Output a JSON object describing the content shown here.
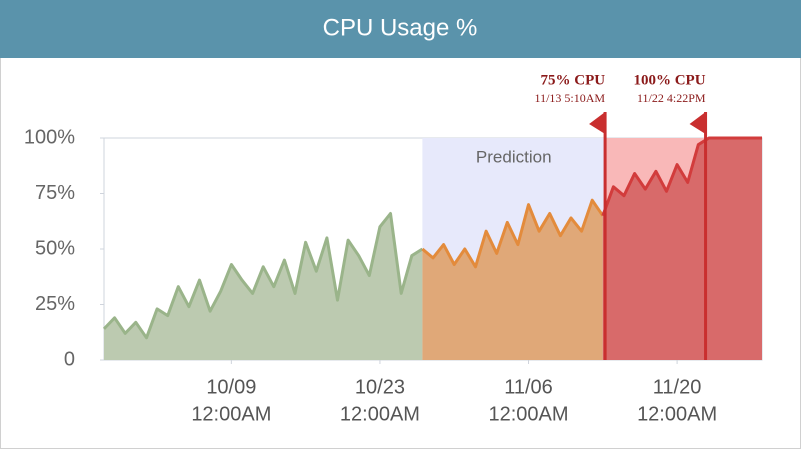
{
  "chart_data": {
    "type": "area",
    "title": "CPU Usage %",
    "x": [
      "09/27 12:00AM",
      "09/28 12:00AM",
      "09/29 12:00AM",
      "09/30 12:00AM",
      "10/01 12:00AM",
      "10/02 12:00AM",
      "10/03 12:00AM",
      "10/04 12:00AM",
      "10/05 12:00AM",
      "10/06 12:00AM",
      "10/07 12:00AM",
      "10/08 12:00AM",
      "10/09 12:00AM",
      "10/10 12:00AM",
      "10/11 12:00AM",
      "10/12 12:00AM",
      "10/13 12:00AM",
      "10/14 12:00AM",
      "10/15 12:00AM",
      "10/16 12:00AM",
      "10/17 12:00AM",
      "10/18 12:00AM",
      "10/19 12:00AM",
      "10/20 12:00AM",
      "10/21 12:00AM",
      "10/22 12:00AM",
      "10/23 12:00AM",
      "10/24 12:00AM",
      "10/25 12:00AM",
      "10/26 12:00AM",
      "10/27 12:00AM",
      "10/28 12:00AM",
      "10/29 12:00AM",
      "10/30 12:00AM",
      "10/31 12:00AM",
      "11/01 12:00AM",
      "11/02 12:00AM",
      "11/03 12:00AM",
      "11/04 12:00AM",
      "11/05 12:00AM",
      "11/06 12:00AM",
      "11/07 12:00AM",
      "11/08 12:00AM",
      "11/09 12:00AM",
      "11/10 12:00AM",
      "11/11 12:00AM",
      "11/12 12:00AM",
      "11/13 12:00AM",
      "11/14 12:00AM",
      "11/15 12:00AM",
      "11/16 12:00AM",
      "11/17 12:00AM",
      "11/18 12:00AM",
      "11/19 12:00AM",
      "11/20 12:00AM",
      "11/21 12:00AM",
      "11/22 12:00AM",
      "11/23 12:00AM",
      "11/24 12:00AM",
      "11/25 12:00AM",
      "11/26 12:00AM",
      "11/27 12:00AM",
      "11/28 12:00AM"
    ],
    "series": [
      {
        "color": "#9ab48a",
        "fill": "#bccab0",
        "values": [
          14,
          19,
          12,
          17,
          10,
          23,
          20,
          33,
          24,
          36,
          22,
          31,
          43,
          36,
          30,
          42,
          33,
          45,
          30,
          53,
          40,
          55,
          27,
          54,
          47,
          38,
          60,
          66,
          30,
          47,
          50,
          null,
          null,
          null,
          null,
          null,
          null,
          null,
          null,
          null,
          null,
          null,
          null,
          null,
          null,
          null,
          null,
          null,
          null,
          null,
          null,
          null,
          null,
          null,
          null,
          null,
          null,
          null,
          null,
          null,
          null,
          null,
          null
        ]
      },
      {
        "color": "#e38b3c",
        "fill": "#e0a878",
        "values": [
          null,
          null,
          null,
          null,
          null,
          null,
          null,
          null,
          null,
          null,
          null,
          null,
          null,
          null,
          null,
          null,
          null,
          null,
          null,
          null,
          null,
          null,
          null,
          null,
          null,
          null,
          null,
          null,
          null,
          null,
          50,
          46,
          52,
          43,
          50,
          42,
          58,
          48,
          62,
          52,
          70,
          58,
          66,
          56,
          64,
          58,
          72,
          65,
          null,
          null,
          null,
          null,
          null,
          null,
          null,
          null,
          null,
          null,
          null,
          null,
          null,
          null,
          null
        ]
      },
      {
        "color": "#d23c3c",
        "fill": "#d86a6a",
        "values": [
          null,
          null,
          null,
          null,
          null,
          null,
          null,
          null,
          null,
          null,
          null,
          null,
          null,
          null,
          null,
          null,
          null,
          null,
          null,
          null,
          null,
          null,
          null,
          null,
          null,
          null,
          null,
          null,
          null,
          null,
          null,
          null,
          null,
          null,
          null,
          null,
          null,
          null,
          null,
          null,
          null,
          null,
          null,
          null,
          null,
          null,
          null,
          65,
          78,
          74,
          84,
          77,
          85,
          76,
          88,
          80,
          97,
          100,
          100,
          100,
          100,
          100,
          100
        ]
      }
    ],
    "prediction_label": "Prediction",
    "annotations": [
      {
        "label": "75% CPU",
        "date": "11/13 5:10AM"
      },
      {
        "label": "100% CPU",
        "date": "11/22 4:22PM"
      }
    ],
    "xlim": [
      "09/27 12:00AM",
      "11/28 12:00AM"
    ],
    "xticks": [
      {
        "value": "10/09 12:00AM",
        "label": [
          "10/09",
          "12:00AM"
        ]
      },
      {
        "value": "10/23 12:00AM",
        "label": [
          "10/23",
          "12:00AM"
        ]
      },
      {
        "value": "11/06 12:00AM",
        "label": [
          "11/06",
          "12:00AM"
        ]
      },
      {
        "value": "11/20 12:00AM",
        "label": [
          "11/20",
          "12:00AM"
        ]
      }
    ],
    "ylim": [
      0,
      100
    ],
    "yticks": [
      0,
      {
        "value": 25,
        "label": "25%"
      },
      {
        "value": 50,
        "label": "50%"
      },
      {
        "value": 75,
        "label": "75%"
      },
      {
        "value": 100,
        "label": "100%"
      }
    ]
  }
}
